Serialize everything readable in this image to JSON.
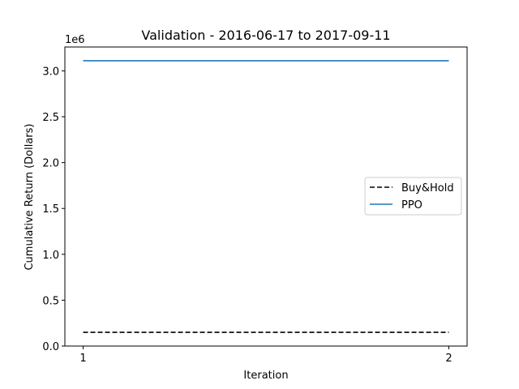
{
  "chart_data": {
    "type": "line",
    "title": "Validation - 2016-06-17 to 2017-09-11",
    "xlabel": "Iteration",
    "ylabel": "Cumulative Return (Dollars)",
    "y_offset_label": "1e6",
    "x": [
      1,
      2
    ],
    "x_ticks": [
      1,
      2
    ],
    "x_tick_labels": [
      "1",
      "2"
    ],
    "xlim": [
      0.95,
      2.05
    ],
    "ylim": [
      0,
      3.26
    ],
    "y_ticks": [
      0.0,
      0.5,
      1.0,
      1.5,
      2.0,
      2.5,
      3.0
    ],
    "y_tick_labels": [
      "0.0",
      "0.5",
      "1.0",
      "1.5",
      "2.0",
      "2.5",
      "3.0"
    ],
    "grid": false,
    "legend_position": "center-right",
    "series": [
      {
        "name": "Buy&Hold",
        "values": [
          0.15,
          0.15
        ],
        "color": "#000000",
        "dash": "dashed"
      },
      {
        "name": "PPO",
        "values": [
          3.11,
          3.11
        ],
        "color": "#1f77b4",
        "dash": "solid"
      }
    ]
  }
}
